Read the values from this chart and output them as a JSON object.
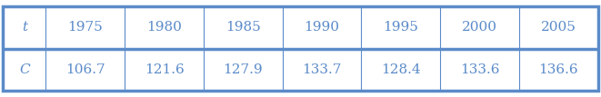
{
  "years": [
    "1975",
    "1980",
    "1985",
    "1990",
    "1995",
    "2000",
    "2005"
  ],
  "values": [
    "106.7",
    "121.6",
    "127.9",
    "133.7",
    "128.4",
    "133.6",
    "136.6"
  ],
  "row_labels": [
    "t",
    "C"
  ],
  "border_color": "#5b8bc9",
  "text_color": "#5b8bc9",
  "bg_color": "#ffffff",
  "outer_lw": 2.5,
  "inner_lw": 0.8,
  "figsize": [
    6.61,
    1.07
  ],
  "dpi": 100,
  "fontsize": 11
}
